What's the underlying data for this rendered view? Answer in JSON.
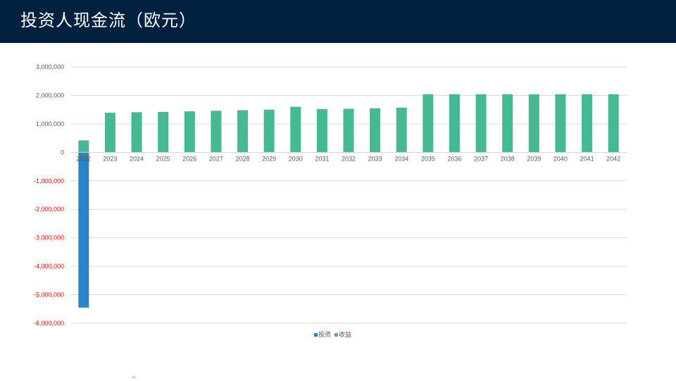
{
  "header": {
    "title": "投资人现金流（欧元）"
  },
  "footer": {
    "stray_text": "ㅅ"
  },
  "colors": {
    "header_bg": "#02203f",
    "investment": "#2a84c6",
    "income": "#45b994",
    "negative_tick": "#ff0000",
    "positive_tick": "#595959",
    "gridline": "#d9d9d9"
  },
  "chart_data": {
    "type": "bar",
    "title": "",
    "xlabel": "",
    "ylabel": "",
    "ylim": [
      -6000000,
      3000000
    ],
    "y_ticks": [
      3000000,
      2000000,
      1000000,
      0,
      -1000000,
      -2000000,
      -3000000,
      -4000000,
      -5000000,
      -6000000
    ],
    "y_tick_labels": [
      "3,000,000",
      "2,000,000",
      "1,000,000",
      "0",
      "-1,000,000",
      "-2,000,000",
      "-3,000,000",
      "-4,000,000",
      "-5,000,000",
      "-6,000,000"
    ],
    "negative_labels_red": true,
    "grid": true,
    "legend_position": "bottom",
    "categories": [
      "2022",
      "2023",
      "2024",
      "2025",
      "2026",
      "2027",
      "2028",
      "2029",
      "2030",
      "2031",
      "2032",
      "2033",
      "2034",
      "2035",
      "2036",
      "2037",
      "2038",
      "2039",
      "2040",
      "2041",
      "2042"
    ],
    "series": [
      {
        "name": "投资",
        "color": "#2a84c6",
        "values": [
          -5450000,
          0,
          0,
          0,
          0,
          0,
          0,
          0,
          0,
          0,
          0,
          0,
          0,
          0,
          0,
          0,
          0,
          0,
          0,
          0,
          0
        ]
      },
      {
        "name": "收益",
        "color": "#45b994",
        "values": [
          420000,
          1390000,
          1410000,
          1420000,
          1440000,
          1460000,
          1480000,
          1500000,
          1600000,
          1520000,
          1530000,
          1550000,
          1570000,
          2040000,
          2040000,
          2040000,
          2040000,
          2040000,
          2040000,
          2040000,
          2040000
        ]
      }
    ]
  }
}
